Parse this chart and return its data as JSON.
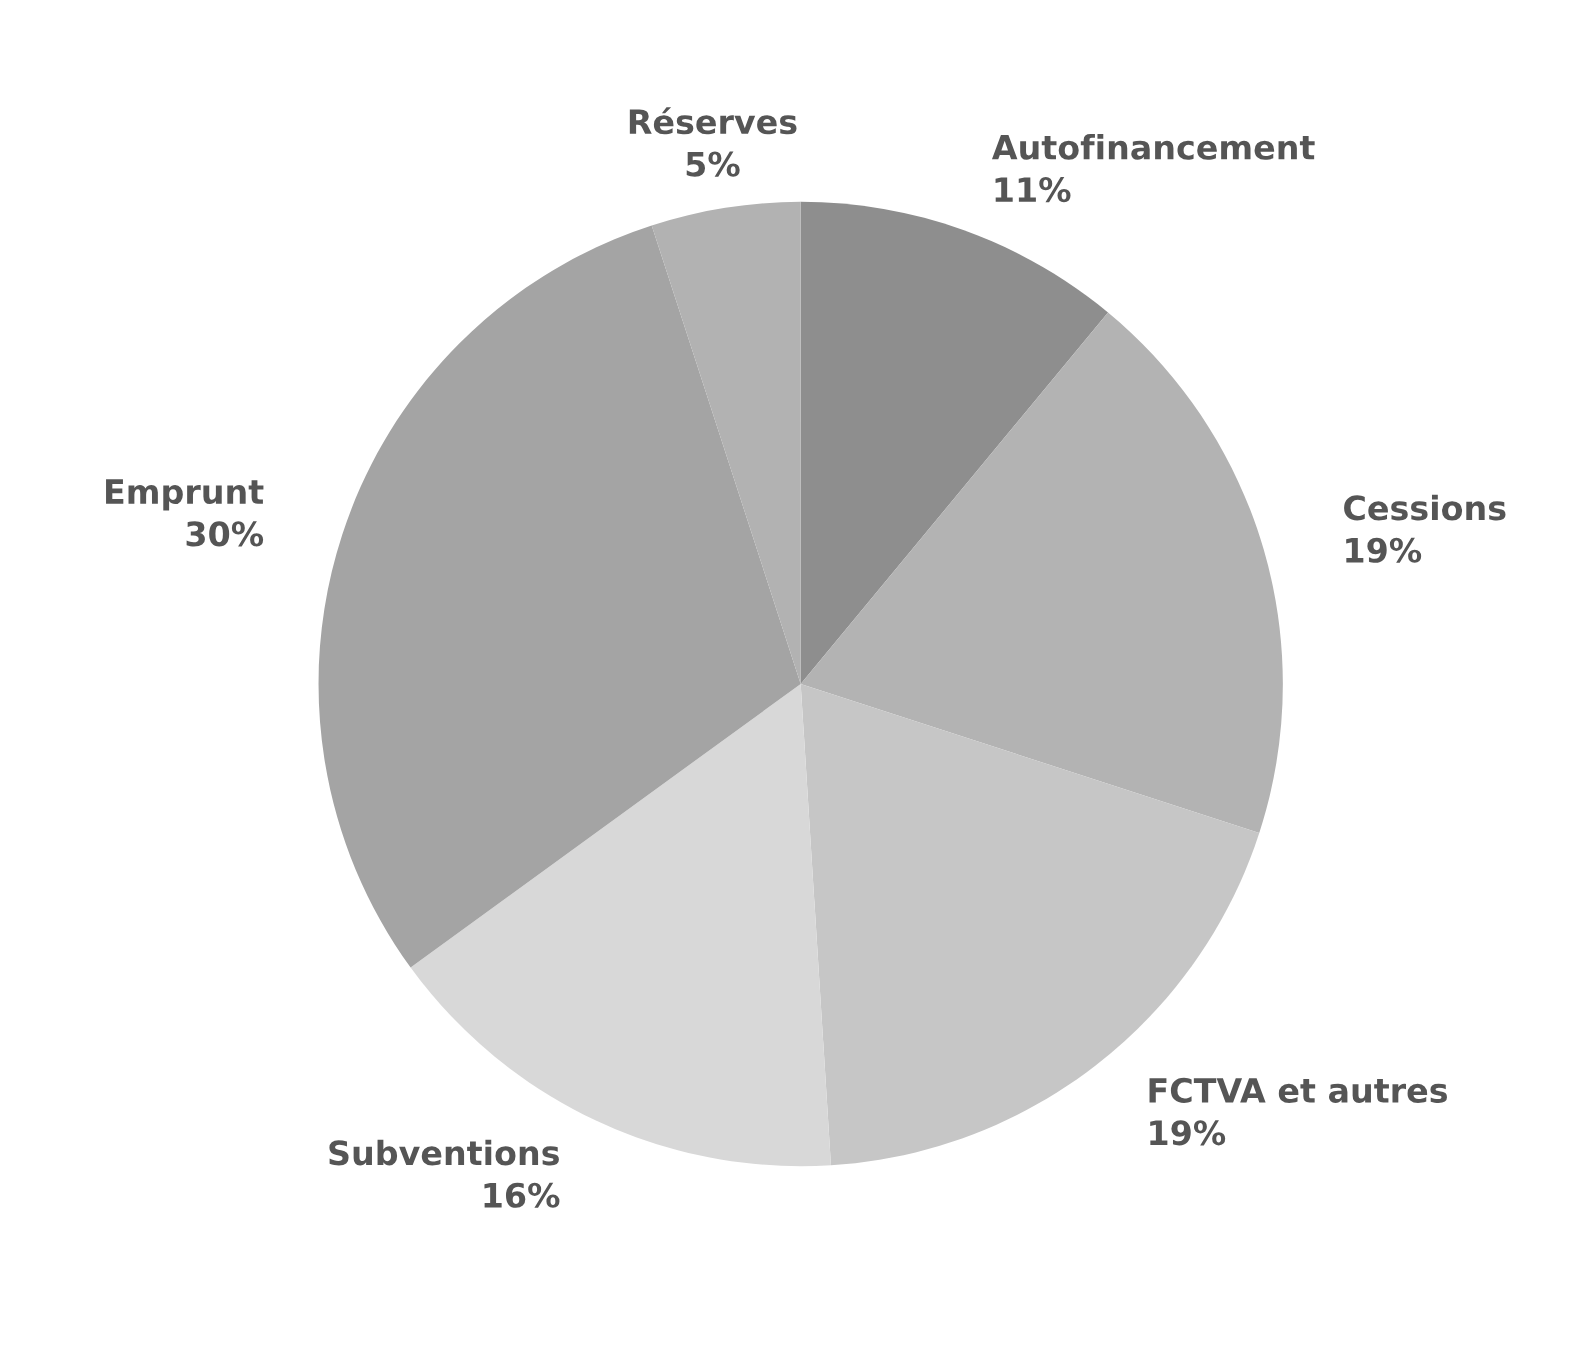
{
  "chart_data": {
    "type": "pie",
    "categories": [
      "Autofinancement",
      "Cessions",
      "FCTVA et autres",
      "Subventions",
      "Emprunt",
      "Réserves"
    ],
    "values": [
      11,
      19,
      19,
      16,
      30,
      5
    ],
    "value_labels": [
      "11%",
      "19%",
      "19%",
      "16%",
      "30%",
      "5%"
    ],
    "colors": [
      "#8e8e8e",
      "#b3b3b3",
      "#c6c6c6",
      "#d8d8d8",
      "#a4a4a4",
      "#b2b2b2"
    ]
  }
}
